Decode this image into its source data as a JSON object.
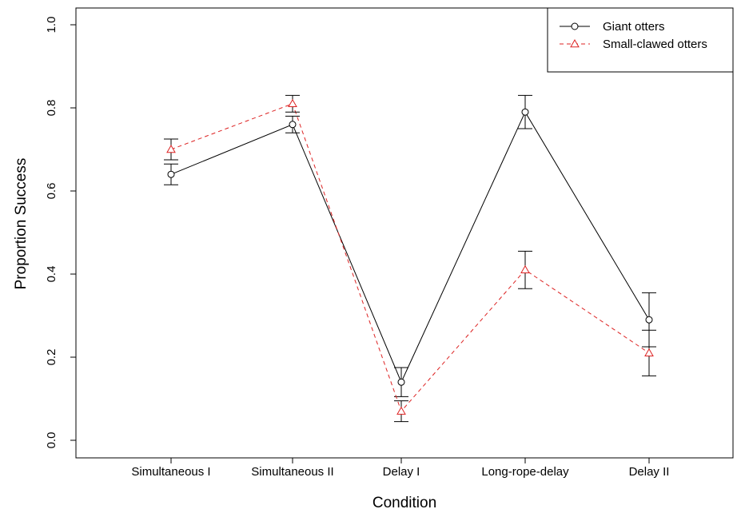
{
  "chart_data": {
    "type": "line",
    "xlabel": "Condition",
    "ylabel": "Proportion Success",
    "categories": [
      "Simultaneous I",
      "Simultaneous II",
      "Delay I",
      "Long-rope-delay",
      "Delay II"
    ],
    "ylim": [
      0,
      1
    ],
    "yticks": [
      "0.0",
      "0.2",
      "0.4",
      "0.6",
      "0.8",
      "1.0"
    ],
    "grid": false,
    "legend_position": "top-right",
    "series": [
      {
        "name": "Giant otters",
        "marker": "circle",
        "line_style": "solid",
        "color": "#000000",
        "values": [
          0.64,
          0.76,
          0.14,
          0.79,
          0.29
        ],
        "error_low": [
          0.615,
          0.74,
          0.105,
          0.75,
          0.225
        ],
        "error_high": [
          0.665,
          0.78,
          0.175,
          0.83,
          0.355
        ]
      },
      {
        "name": "Small-clawed otters",
        "marker": "triangle",
        "line_style": "dashed",
        "color": "#dd2222",
        "values": [
          0.7,
          0.81,
          0.07,
          0.41,
          0.21
        ],
        "error_low": [
          0.675,
          0.79,
          0.045,
          0.365,
          0.155
        ],
        "error_high": [
          0.725,
          0.83,
          0.095,
          0.455,
          0.265
        ]
      }
    ]
  }
}
